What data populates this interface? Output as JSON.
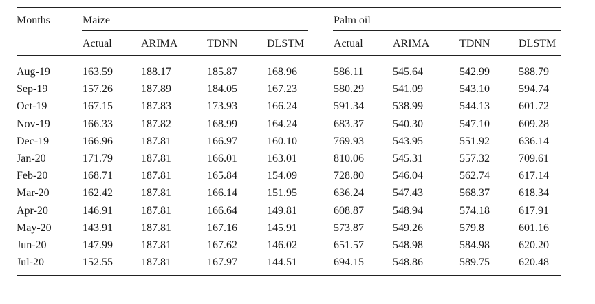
{
  "table": {
    "stub_header": "Months",
    "groups": [
      {
        "label": "Maize",
        "columns": [
          "Actual",
          "ARIMA",
          "TDNN",
          "DLSTM"
        ]
      },
      {
        "label": "Palm oil",
        "columns": [
          "Actual",
          "ARIMA",
          "TDNN",
          "DLSTM"
        ]
      }
    ],
    "rows": [
      {
        "month": "Aug-19",
        "values": [
          "163.59",
          "188.17",
          "185.87",
          "168.96",
          "586.11",
          "545.64",
          "542.99",
          "588.79"
        ]
      },
      {
        "month": "Sep-19",
        "values": [
          "157.26",
          "187.89",
          "184.05",
          "167.23",
          "580.29",
          "541.09",
          "543.10",
          "594.74"
        ]
      },
      {
        "month": "Oct-19",
        "values": [
          "167.15",
          "187.83",
          "173.93",
          "166.24",
          "591.34",
          "538.99",
          "544.13",
          "601.72"
        ]
      },
      {
        "month": "Nov-19",
        "values": [
          "166.33",
          "187.82",
          "168.99",
          "164.24",
          "683.37",
          "540.30",
          "547.10",
          "609.28"
        ]
      },
      {
        "month": "Dec-19",
        "values": [
          "166.96",
          "187.81",
          "166.97",
          "160.10",
          "769.93",
          "543.95",
          "551.92",
          "636.14"
        ]
      },
      {
        "month": "Jan-20",
        "values": [
          "171.79",
          "187.81",
          "166.01",
          "163.01",
          "810.06",
          "545.31",
          "557.32",
          "709.61"
        ]
      },
      {
        "month": "Feb-20",
        "values": [
          "168.71",
          "187.81",
          "165.84",
          "154.09",
          "728.80",
          "546.04",
          "562.74",
          "617.14"
        ]
      },
      {
        "month": "Mar-20",
        "values": [
          "162.42",
          "187.81",
          "166.14",
          "151.95",
          "636.24",
          "547.43",
          "568.37",
          "618.34"
        ]
      },
      {
        "month": "Apr-20",
        "values": [
          "146.91",
          "187.81",
          "166.64",
          "149.81",
          "608.87",
          "548.94",
          "574.18",
          "617.91"
        ]
      },
      {
        "month": "May-20",
        "values": [
          "143.91",
          "187.81",
          "167.16",
          "145.91",
          "573.87",
          "549.26",
          "579.8",
          "601.16"
        ]
      },
      {
        "month": "Jun-20",
        "values": [
          "147.99",
          "187.81",
          "167.62",
          "146.02",
          "651.57",
          "548.98",
          "584.98",
          "620.20"
        ]
      },
      {
        "month": "Jul-20",
        "values": [
          "152.55",
          "187.81",
          "167.97",
          "144.51",
          "694.15",
          "548.86",
          "589.75",
          "620.48"
        ]
      }
    ]
  }
}
